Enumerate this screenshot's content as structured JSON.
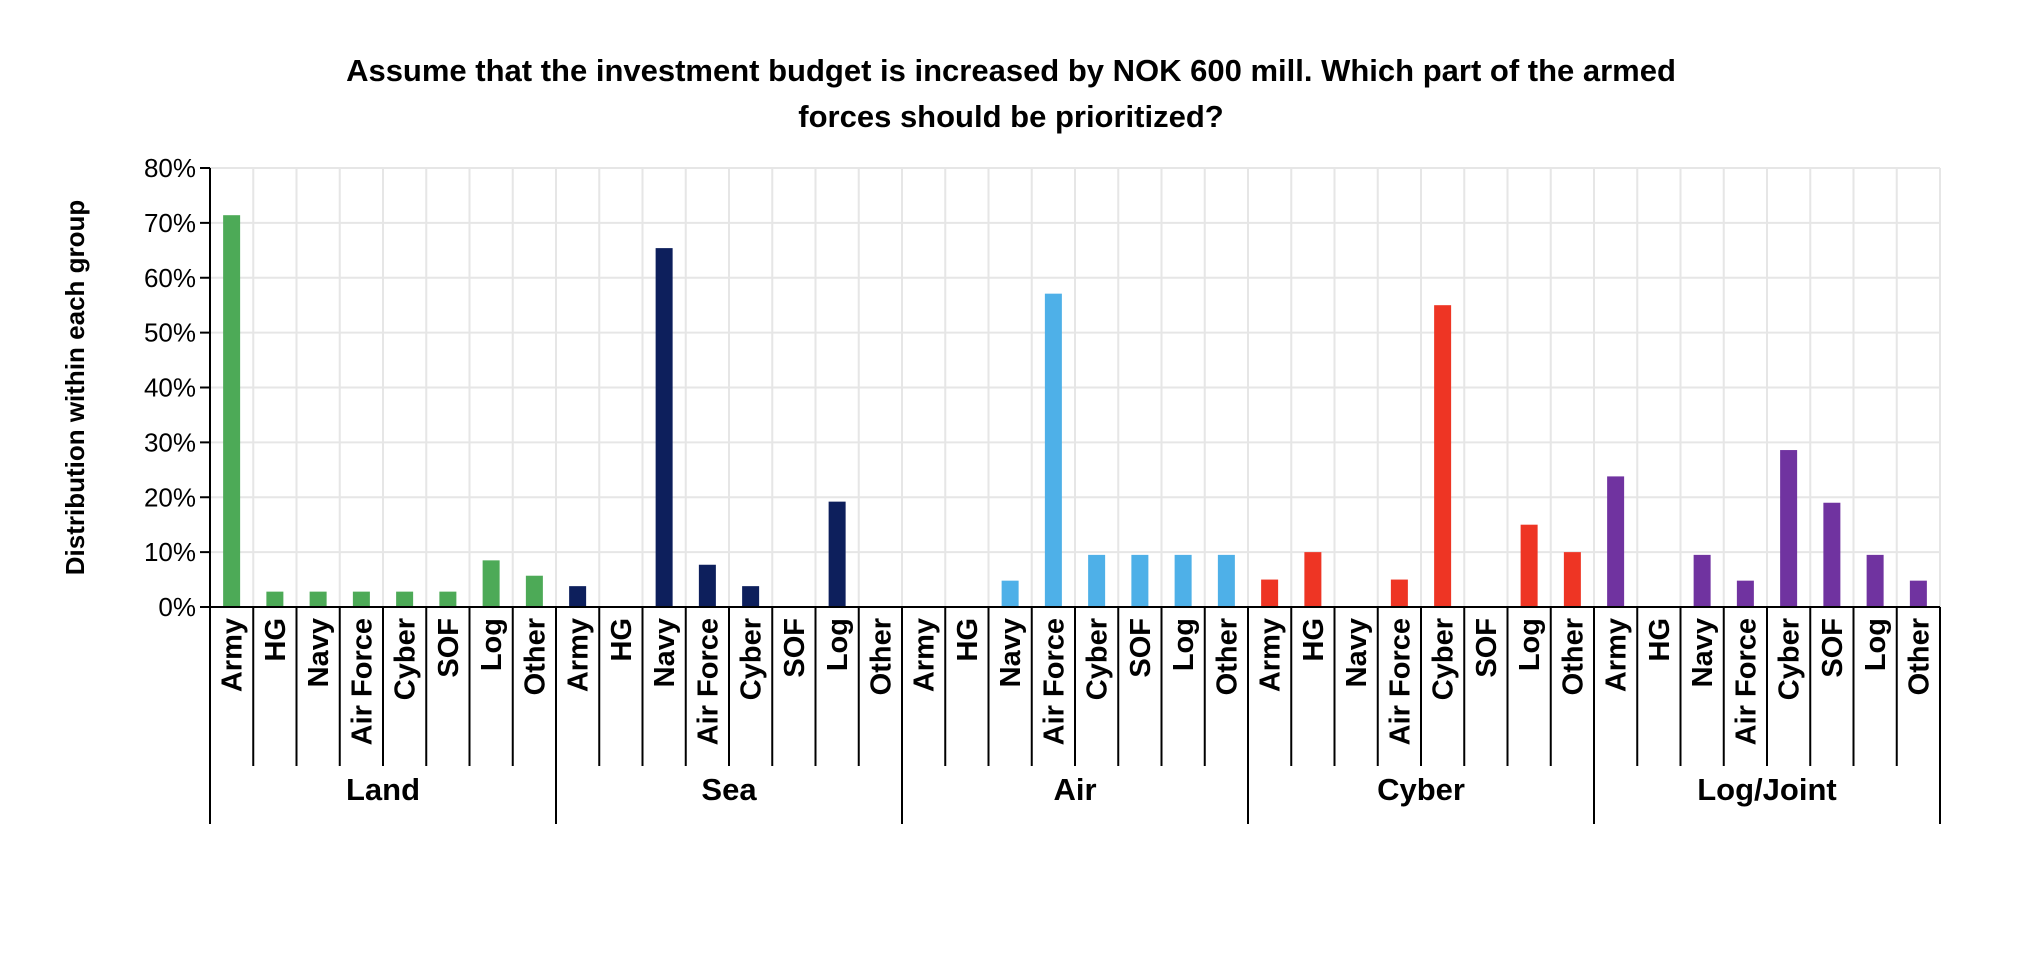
{
  "chart_data": {
    "type": "bar",
    "title_lines": [
      "Assume that the investment budget is increased by NOK 600 mill. Which part of the armed",
      "forces should be prioritized?"
    ],
    "ylabel": "Distribution within each group",
    "xlabel": "",
    "ylim": [
      0,
      0.8
    ],
    "y_ticks": [
      0,
      0.1,
      0.2,
      0.3,
      0.4,
      0.5,
      0.6,
      0.7,
      0.8
    ],
    "y_tick_labels": [
      "0%",
      "10%",
      "20%",
      "30%",
      "40%",
      "50%",
      "60%",
      "70%",
      "80%"
    ],
    "grid": true,
    "categories": [
      "Army",
      "HG",
      "Navy",
      "Air Force",
      "Cyber",
      "SOF",
      "Log",
      "Other"
    ],
    "groups": [
      {
        "name": "Land",
        "color": "#4daa57",
        "values": [
          0.714,
          0.028,
          0.028,
          0.028,
          0.028,
          0.028,
          0.085,
          0.057
        ]
      },
      {
        "name": "Sea",
        "color": "#0d1f5c",
        "values": [
          0.038,
          0.0,
          0.654,
          0.077,
          0.038,
          0.0,
          0.192,
          0.0
        ]
      },
      {
        "name": "Air",
        "color": "#4eb0e8",
        "values": [
          0.0,
          0.0,
          0.048,
          0.571,
          0.095,
          0.095,
          0.095,
          0.095
        ]
      },
      {
        "name": "Cyber",
        "color": "#ee3524",
        "values": [
          0.05,
          0.1,
          0.0,
          0.05,
          0.55,
          0.0,
          0.15,
          0.1
        ]
      },
      {
        "name": "Log/Joint",
        "color": "#7033a0",
        "values": [
          0.238,
          0.0,
          0.095,
          0.048,
          0.286,
          0.19,
          0.095,
          0.048
        ]
      }
    ]
  }
}
